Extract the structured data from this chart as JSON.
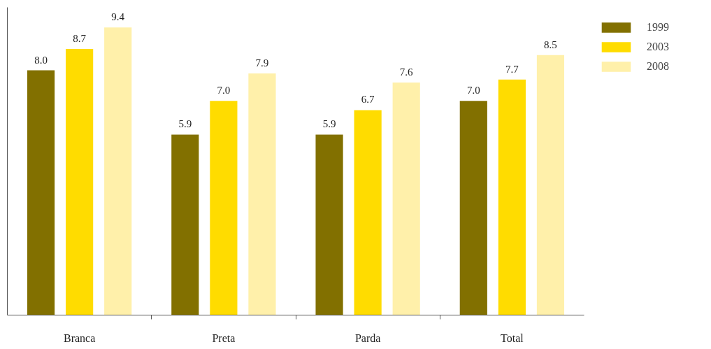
{
  "chart_data": {
    "type": "bar",
    "categories": [
      "Branca",
      "Preta",
      "Parda",
      "Total"
    ],
    "series": [
      {
        "name": "1999",
        "color": "#827000",
        "values": [
          8.0,
          5.9,
          5.9,
          7.0
        ],
        "value_labels": [
          "8.0",
          "5.9",
          "5.9",
          "7.0"
        ]
      },
      {
        "name": "2003",
        "color": "#ffdc00",
        "values": [
          8.7,
          7.0,
          6.7,
          7.7
        ],
        "value_labels": [
          "8.7",
          "7.0",
          "6.7",
          "7.7"
        ]
      },
      {
        "name": "2008",
        "color": "#fff0aa",
        "values": [
          9.4,
          7.9,
          7.6,
          8.5
        ],
        "value_labels": [
          "9.4",
          "7.9",
          "7.6",
          "8.5"
        ]
      }
    ],
    "grid": false,
    "legend": "top right"
  }
}
